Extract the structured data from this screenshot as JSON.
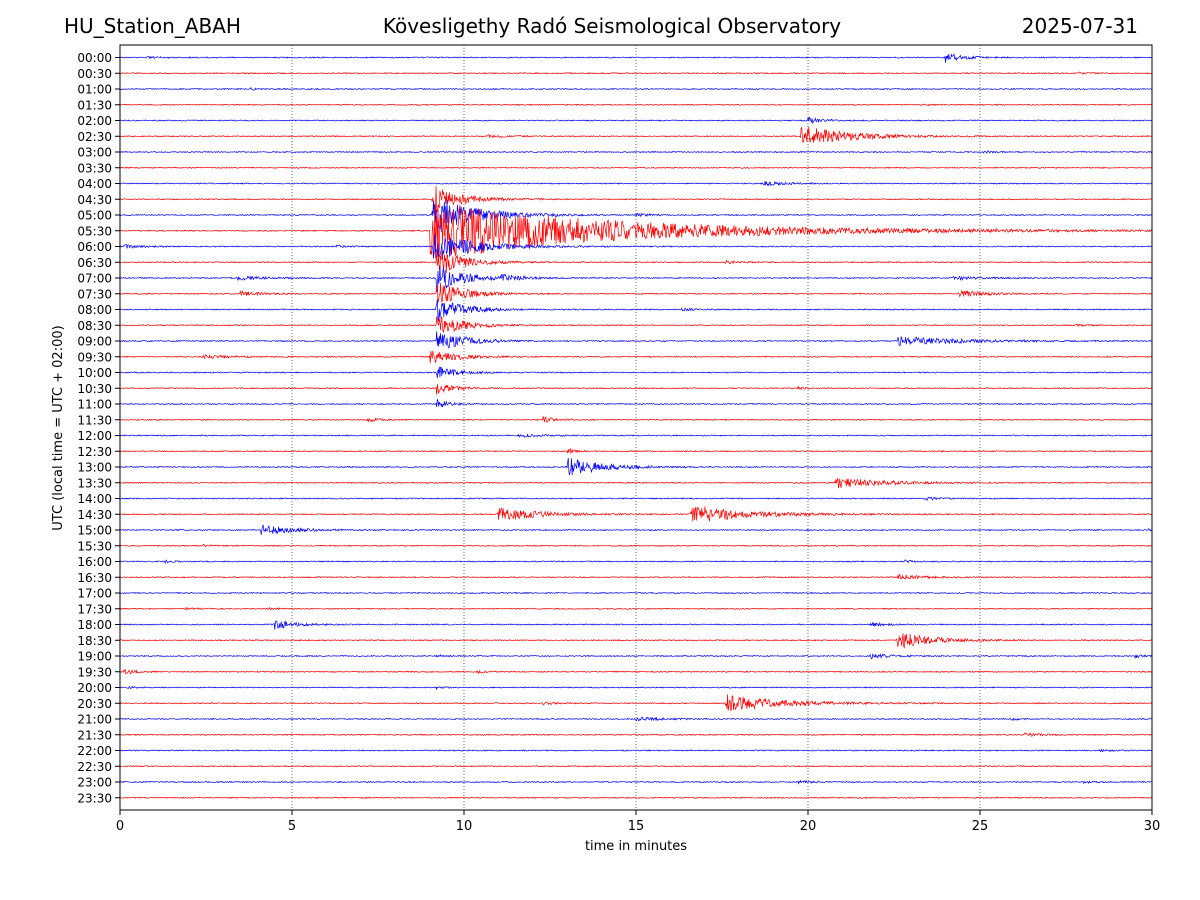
{
  "header": {
    "station": "HU_Station_ABAH",
    "title": "Kövesligethy Radó Seismological Observatory",
    "date": "2025-07-31"
  },
  "chart_data": {
    "type": "line",
    "title": "Kövesligethy Radó Seismological Observatory",
    "xlabel": "time in minutes",
    "ylabel": "UTC (local time = UTC + 02:00)",
    "xlim": [
      0,
      30
    ],
    "xticks": [
      "0",
      "5",
      "10",
      "15",
      "20",
      "25",
      "30"
    ],
    "grid": "vertical dotted lines at each x tick",
    "colors": [
      "#0000ff",
      "#ff0000"
    ],
    "traces": [
      {
        "label": "00:00",
        "events": [
          {
            "t": 24.0,
            "amp": 0.8,
            "dur": 1.2
          },
          {
            "t": 0.8,
            "amp": 0.15,
            "dur": 1.0
          }
        ]
      },
      {
        "label": "00:30",
        "events": [
          {
            "t": 27.9,
            "amp": 0.2,
            "dur": 0.6
          }
        ]
      },
      {
        "label": "01:00",
        "events": [
          {
            "t": 3.8,
            "amp": 0.15,
            "dur": 0.6
          }
        ]
      },
      {
        "label": "01:30",
        "events": [
          {
            "t": 23.3,
            "amp": 0.15,
            "dur": 0.6
          }
        ]
      },
      {
        "label": "02:00",
        "events": [
          {
            "t": 20.0,
            "amp": 0.5,
            "dur": 1.0
          }
        ]
      },
      {
        "label": "02:30",
        "events": [
          {
            "t": 19.8,
            "amp": 1.8,
            "dur": 3.5
          },
          {
            "t": 10.7,
            "amp": 0.2,
            "dur": 1.5
          }
        ]
      },
      {
        "label": "03:00",
        "events": [
          {
            "t": 25.1,
            "amp": 0.2,
            "dur": 0.6
          }
        ]
      },
      {
        "label": "03:30",
        "events": []
      },
      {
        "label": "04:00",
        "events": [
          {
            "t": 18.7,
            "amp": 0.4,
            "dur": 1.5
          }
        ]
      },
      {
        "label": "04:30",
        "events": [
          {
            "t": 9.1,
            "amp": 2.5,
            "dur": 2.0
          }
        ]
      },
      {
        "label": "05:00",
        "events": [
          {
            "t": 9.1,
            "amp": 3.5,
            "dur": 3.0
          },
          {
            "t": 15.0,
            "amp": 0.25,
            "dur": 1.0
          }
        ]
      },
      {
        "label": "05:30",
        "events": [
          {
            "t": 9.0,
            "amp": 5.0,
            "dur": 14.0
          }
        ]
      },
      {
        "label": "06:00",
        "events": [
          {
            "t": 9.1,
            "amp": 2.8,
            "dur": 3.0
          },
          {
            "t": 0.1,
            "amp": 0.3,
            "dur": 1.5
          },
          {
            "t": 6.3,
            "amp": 0.2,
            "dur": 0.8
          }
        ]
      },
      {
        "label": "06:30",
        "events": [
          {
            "t": 9.2,
            "amp": 2.5,
            "dur": 2.0
          },
          {
            "t": 17.6,
            "amp": 0.3,
            "dur": 0.8
          }
        ]
      },
      {
        "label": "07:00",
        "events": [
          {
            "t": 9.2,
            "amp": 2.5,
            "dur": 2.0
          },
          {
            "t": 11.1,
            "amp": 0.4,
            "dur": 1.5
          },
          {
            "t": 3.4,
            "amp": 0.3,
            "dur": 2.0
          },
          {
            "t": 24.2,
            "amp": 0.3,
            "dur": 2.0
          }
        ]
      },
      {
        "label": "07:30",
        "events": [
          {
            "t": 9.2,
            "amp": 2.2,
            "dur": 2.0
          },
          {
            "t": 3.5,
            "amp": 0.4,
            "dur": 1.5
          },
          {
            "t": 24.4,
            "amp": 0.6,
            "dur": 1.8
          }
        ]
      },
      {
        "label": "08:00",
        "events": [
          {
            "t": 9.2,
            "amp": 2.0,
            "dur": 2.0
          },
          {
            "t": 16.3,
            "amp": 0.2,
            "dur": 1.0
          }
        ]
      },
      {
        "label": "08:30",
        "events": [
          {
            "t": 9.2,
            "amp": 1.8,
            "dur": 2.0
          },
          {
            "t": 27.8,
            "amp": 0.2,
            "dur": 0.6
          }
        ]
      },
      {
        "label": "09:00",
        "events": [
          {
            "t": 9.2,
            "amp": 1.8,
            "dur": 2.0
          },
          {
            "t": 22.6,
            "amp": 0.8,
            "dur": 4.5
          }
        ]
      },
      {
        "label": "09:30",
        "events": [
          {
            "t": 9.0,
            "amp": 1.2,
            "dur": 2.0
          },
          {
            "t": 2.4,
            "amp": 0.3,
            "dur": 2.0
          }
        ]
      },
      {
        "label": "10:00",
        "events": [
          {
            "t": 9.2,
            "amp": 1.0,
            "dur": 1.5
          }
        ]
      },
      {
        "label": "10:30",
        "events": [
          {
            "t": 9.2,
            "amp": 1.0,
            "dur": 1.2
          },
          {
            "t": 19.7,
            "amp": 0.2,
            "dur": 0.6
          }
        ]
      },
      {
        "label": "11:00",
        "events": [
          {
            "t": 9.2,
            "amp": 0.8,
            "dur": 0.8
          }
        ]
      },
      {
        "label": "11:30",
        "events": [
          {
            "t": 7.2,
            "amp": 0.3,
            "dur": 0.8
          },
          {
            "t": 12.3,
            "amp": 0.5,
            "dur": 0.8
          }
        ]
      },
      {
        "label": "12:00",
        "events": [
          {
            "t": 11.6,
            "amp": 0.3,
            "dur": 1.5
          }
        ]
      },
      {
        "label": "12:30",
        "events": [
          {
            "t": 13.0,
            "amp": 0.5,
            "dur": 0.5
          }
        ]
      },
      {
        "label": "13:00",
        "events": [
          {
            "t": 13.0,
            "amp": 1.6,
            "dur": 2.5
          }
        ]
      },
      {
        "label": "13:30",
        "events": [
          {
            "t": 20.8,
            "amp": 0.9,
            "dur": 3.5
          }
        ]
      },
      {
        "label": "14:00",
        "events": [
          {
            "t": 23.4,
            "amp": 0.3,
            "dur": 0.8
          }
        ]
      },
      {
        "label": "14:30",
        "events": [
          {
            "t": 11.0,
            "amp": 1.2,
            "dur": 3.0
          },
          {
            "t": 16.6,
            "amp": 1.6,
            "dur": 4.0
          }
        ]
      },
      {
        "label": "15:00",
        "events": [
          {
            "t": 4.1,
            "amp": 0.8,
            "dur": 2.5
          },
          {
            "t": 29.9,
            "amp": 0.15,
            "dur": 0.3
          }
        ]
      },
      {
        "label": "15:30",
        "events": [
          {
            "t": 2.4,
            "amp": 0.15,
            "dur": 0.5
          }
        ]
      },
      {
        "label": "16:00",
        "events": [
          {
            "t": 1.3,
            "amp": 0.2,
            "dur": 0.6
          },
          {
            "t": 22.8,
            "amp": 0.2,
            "dur": 0.6
          }
        ]
      },
      {
        "label": "16:30",
        "events": [
          {
            "t": 22.6,
            "amp": 0.5,
            "dur": 1.5
          }
        ]
      },
      {
        "label": "17:00",
        "events": []
      },
      {
        "label": "17:30",
        "events": [
          {
            "t": 1.9,
            "amp": 0.2,
            "dur": 0.6
          },
          {
            "t": 4.3,
            "amp": 0.2,
            "dur": 0.6
          }
        ]
      },
      {
        "label": "18:00",
        "events": [
          {
            "t": 4.5,
            "amp": 0.8,
            "dur": 1.5
          },
          {
            "t": 21.8,
            "amp": 0.3,
            "dur": 1.0
          }
        ]
      },
      {
        "label": "18:30",
        "events": [
          {
            "t": 22.6,
            "amp": 1.5,
            "dur": 2.5
          }
        ]
      },
      {
        "label": "19:00",
        "events": [
          {
            "t": 21.8,
            "amp": 0.4,
            "dur": 1.5
          },
          {
            "t": 9.2,
            "amp": 0.2,
            "dur": 0.5
          },
          {
            "t": 29.5,
            "amp": 0.3,
            "dur": 0.5
          }
        ]
      },
      {
        "label": "19:30",
        "events": [
          {
            "t": 0.1,
            "amp": 0.4,
            "dur": 0.8
          },
          {
            "t": 10.4,
            "amp": 0.2,
            "dur": 0.5
          }
        ]
      },
      {
        "label": "20:00",
        "events": [
          {
            "t": 0.2,
            "amp": 0.2,
            "dur": 0.6
          },
          {
            "t": 9.2,
            "amp": 0.2,
            "dur": 0.5
          }
        ]
      },
      {
        "label": "20:30",
        "events": [
          {
            "t": 17.6,
            "amp": 1.5,
            "dur": 4.0
          },
          {
            "t": 12.3,
            "amp": 0.2,
            "dur": 1.0
          }
        ]
      },
      {
        "label": "21:00",
        "events": [
          {
            "t": 15.0,
            "amp": 0.3,
            "dur": 1.8
          },
          {
            "t": 25.9,
            "amp": 0.2,
            "dur": 0.6
          }
        ]
      },
      {
        "label": "21:30",
        "events": [
          {
            "t": 26.3,
            "amp": 0.3,
            "dur": 1.0
          }
        ]
      },
      {
        "label": "22:00",
        "events": [
          {
            "t": 28.5,
            "amp": 0.15,
            "dur": 0.6
          }
        ]
      },
      {
        "label": "22:30",
        "events": []
      },
      {
        "label": "23:00",
        "events": [
          {
            "t": 19.7,
            "amp": 0.25,
            "dur": 1.0
          },
          {
            "t": 28.0,
            "amp": 0.2,
            "dur": 0.6
          }
        ]
      },
      {
        "label": "23:30",
        "events": []
      }
    ]
  }
}
